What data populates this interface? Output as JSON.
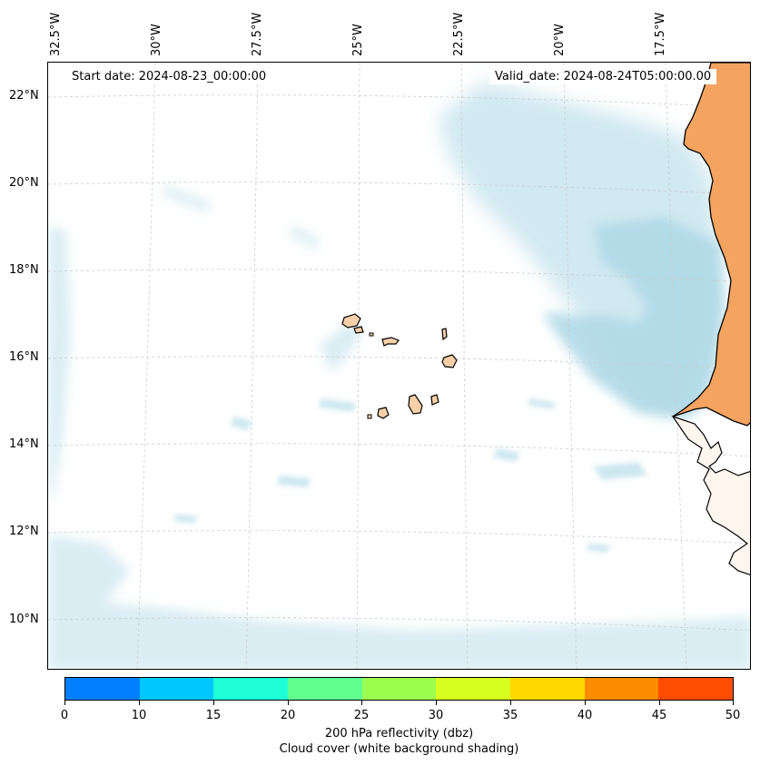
{
  "map": {
    "start_date": "Start date: 2024-08-23_00:00:00",
    "valid_date": "Valid_date: 2024-08-24T05:00:00.00",
    "latitude_labels": [
      "22°N",
      "20°N",
      "18°N",
      "16°N",
      "14°N",
      "12°N",
      "10°N"
    ],
    "longitude_labels": [
      "32.5°W",
      "30°W",
      "27.5°W",
      "25°W",
      "22.5°W",
      "20°W",
      "17.5°W"
    ],
    "land_color": "#f4a460",
    "island_color": "#f8cfa8",
    "cloud_color": "#add8e6"
  },
  "colorbar": {
    "tick_labels": [
      "0",
      "10",
      "15",
      "20",
      "25",
      "30",
      "35",
      "40",
      "45",
      "50"
    ],
    "colors": [
      "#0080ff",
      "#00c8ff",
      "#1effd8",
      "#60ff90",
      "#9cff50",
      "#d8ff20",
      "#ffd800",
      "#ff8c00",
      "#ff4c00"
    ],
    "title_line1": "200 hPa reflectivity (dbz)",
    "title_line2": "Cloud cover (white background shading)"
  }
}
